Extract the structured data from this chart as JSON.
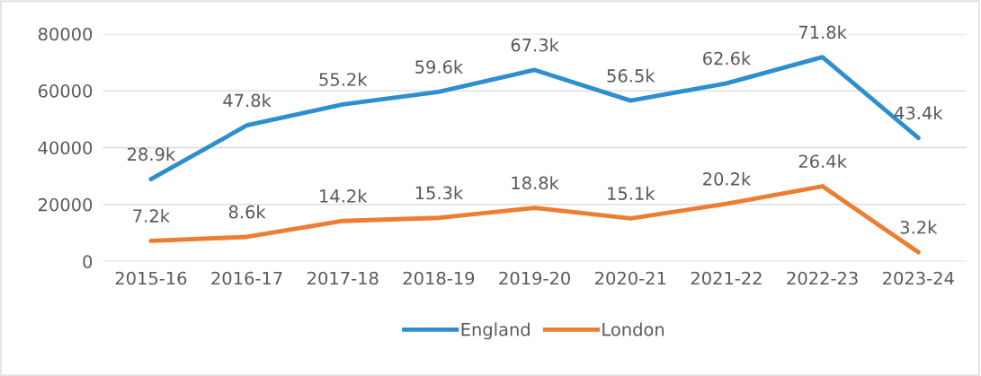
{
  "chart_data": {
    "type": "line",
    "categories": [
      "2015-16",
      "2016-17",
      "2017-18",
      "2018-19",
      "2019-20",
      "2020-21",
      "2021-22",
      "2022-23",
      "2023-24"
    ],
    "series": [
      {
        "name": "England",
        "color": "#2e8fcf",
        "values": [
          28900,
          47800,
          55200,
          59600,
          67300,
          56500,
          62600,
          71800,
          43400
        ],
        "value_labels": [
          "28.9k",
          "47.8k",
          "55.2k",
          "59.6k",
          "67.3k",
          "56.5k",
          "62.6k",
          "71.8k",
          "43.4k"
        ]
      },
      {
        "name": "London",
        "color": "#ed7d31",
        "values": [
          7200,
          8600,
          14200,
          15300,
          18800,
          15100,
          20200,
          26400,
          3200
        ],
        "value_labels": [
          "7.2k",
          "8.6k",
          "14.2k",
          "15.3k",
          "18.8k",
          "15.1k",
          "20.2k",
          "26.4k",
          "3.2k"
        ]
      }
    ],
    "ylim": [
      0,
      80000
    ],
    "yticks": [
      0,
      20000,
      40000,
      60000,
      80000
    ],
    "grid": "y",
    "legend": "bottom",
    "marker": "none",
    "line_style": "solid"
  }
}
